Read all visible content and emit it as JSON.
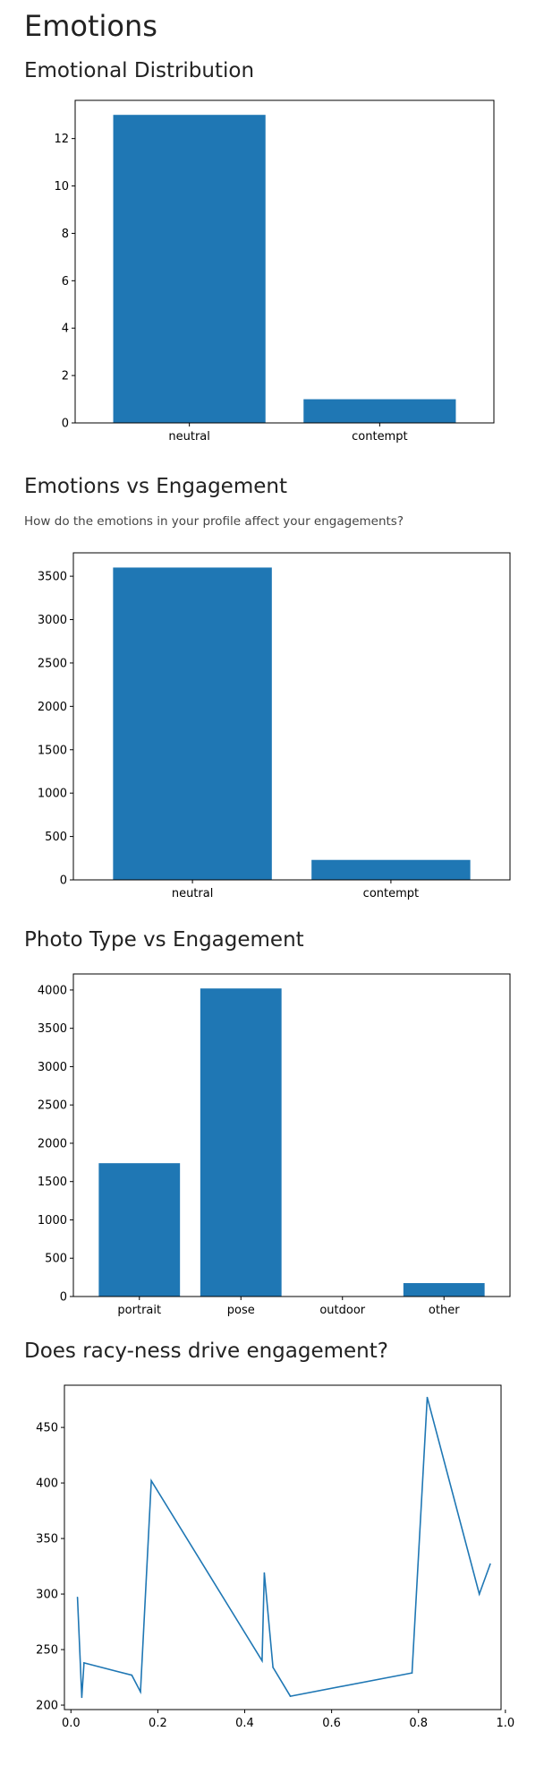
{
  "page": {
    "title": "Emotions",
    "sections": [
      {
        "heading": "Emotional Distribution",
        "subtitle": ""
      },
      {
        "heading": "Emotions vs Engagement",
        "subtitle": "How do the emotions in your profile affect your engagements?"
      },
      {
        "heading": "Photo Type vs Engagement",
        "subtitle": ""
      },
      {
        "heading": "Does racy-ness drive engagement?",
        "subtitle": ""
      }
    ]
  },
  "colors": {
    "bar": "#1f77b4",
    "line": "#1f77b4",
    "axis": "#000000"
  },
  "chart_data": [
    {
      "type": "bar",
      "categories": [
        "neutral",
        "contempt"
      ],
      "values": [
        13,
        1
      ],
      "ylim": [
        0,
        13.0
      ],
      "yticks": [
        0,
        2,
        4,
        6,
        8,
        10,
        12
      ],
      "title": "",
      "xlabel": "",
      "ylabel": "",
      "grid": false
    },
    {
      "type": "bar",
      "categories": [
        "neutral",
        "contempt"
      ],
      "values": [
        3600,
        230
      ],
      "ylim": [
        0,
        3600
      ],
      "yticks": [
        0,
        500,
        1000,
        1500,
        2000,
        2500,
        3000,
        3500
      ],
      "title": "",
      "xlabel": "",
      "ylabel": "",
      "grid": false
    },
    {
      "type": "bar",
      "categories": [
        "portrait",
        "pose",
        "outdoor",
        "other"
      ],
      "values": [
        1740,
        4020,
        0,
        175
      ],
      "ylim": [
        0,
        4020
      ],
      "yticks": [
        0,
        500,
        1000,
        1500,
        2000,
        2500,
        3000,
        3500,
        4000
      ],
      "title": "",
      "xlabel": "",
      "ylabel": "",
      "grid": false
    },
    {
      "type": "line",
      "x": [
        0.015,
        0.025,
        0.03,
        0.14,
        0.16,
        0.185,
        0.44,
        0.445,
        0.465,
        0.505,
        0.785,
        0.82,
        0.94,
        0.965
      ],
      "y": [
        297,
        207,
        238,
        227,
        212,
        402,
        240,
        319,
        234,
        208,
        229,
        477,
        300,
        327
      ],
      "xlim": [
        -0.015,
        0.99
      ],
      "ylim": [
        196,
        488
      ],
      "xticks": [
        0.0,
        0.2,
        0.4,
        0.6,
        0.8,
        1.0
      ],
      "xticklabels": [
        "0.0",
        "0.2",
        "0.4",
        "0.6",
        "0.8",
        "1.0"
      ],
      "yticks": [
        200,
        250,
        300,
        350,
        400,
        450
      ],
      "title": "",
      "xlabel": "",
      "ylabel": "",
      "grid": false
    }
  ]
}
